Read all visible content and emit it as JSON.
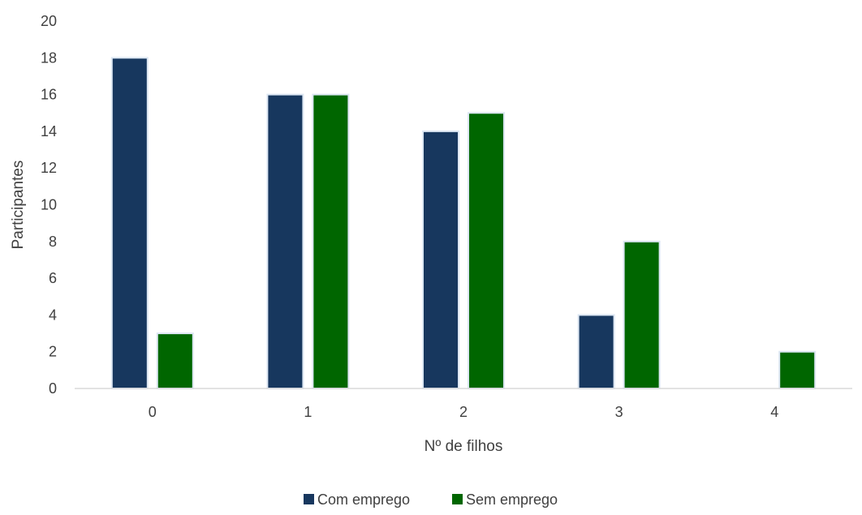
{
  "chart_data": {
    "type": "bar",
    "title": "",
    "xlabel": "Nº de filhos",
    "ylabel": "Participantes",
    "categories": [
      "0",
      "1",
      "2",
      "3",
      "4"
    ],
    "series": [
      {
        "name": "Com emprego",
        "values": [
          18,
          16,
          14,
          4,
          0
        ],
        "color": "#17375E"
      },
      {
        "name": "Sem emprego",
        "values": [
          3,
          16,
          15,
          8,
          2
        ],
        "color": "#006600"
      }
    ],
    "ylim": [
      0,
      20
    ],
    "yticks": [
      "0",
      "2",
      "4",
      "6",
      "8",
      "10",
      "12",
      "14",
      "16",
      "18",
      "20"
    ],
    "grid": false,
    "legend_position": "bottom"
  }
}
